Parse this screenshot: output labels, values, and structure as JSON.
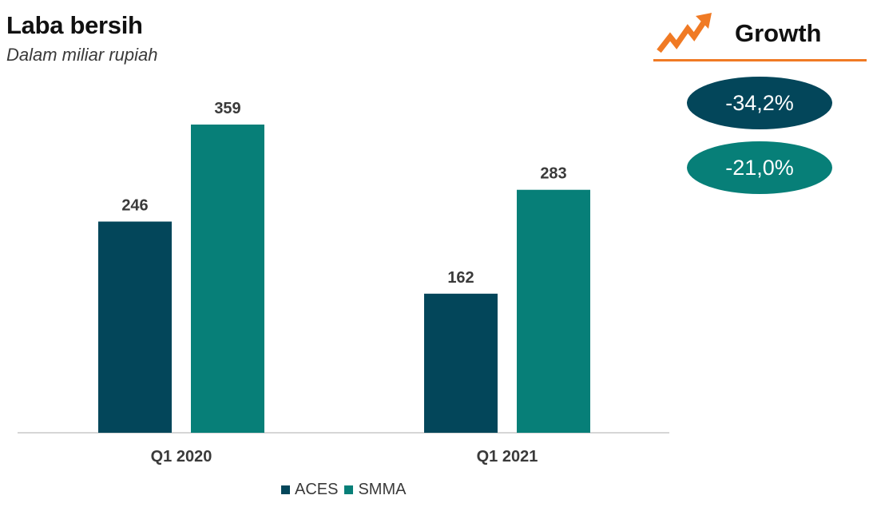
{
  "chart_data": {
    "type": "bar",
    "title": "Laba bersih",
    "subtitle": "Dalam miliar rupiah",
    "categories": [
      "Q1 2020",
      "Q1 2021"
    ],
    "series": [
      {
        "name": "ACES",
        "values": [
          246,
          162
        ],
        "color": "#03465a"
      },
      {
        "name": "SMMA",
        "values": [
          359,
          283
        ],
        "color": "#077f78"
      }
    ],
    "ylim": [
      0,
      400
    ],
    "grid": false,
    "legend": "bottom"
  },
  "growth": {
    "title": "Growth",
    "icon": "trend-up-arrow-icon",
    "accent_color": "#f07a24",
    "items": [
      {
        "value": "-34,2%",
        "color": "#03465a"
      },
      {
        "value": "-21,0%",
        "color": "#077f78"
      }
    ]
  }
}
